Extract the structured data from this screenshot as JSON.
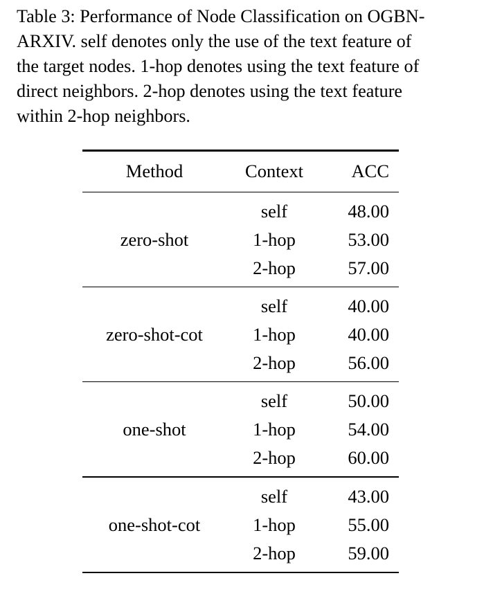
{
  "caption": {
    "lines": [
      "Table 3: Performance of Node Classification on OGBN-",
      "ARXIV. self denotes only the use of the text feature of",
      "the target nodes. 1-hop denotes using the text feature of",
      "direct neighbors. 2-hop denotes using the text feature",
      "within 2-hop neighbors."
    ]
  },
  "table": {
    "headers": {
      "method": "Method",
      "context": "Context",
      "acc": "ACC"
    },
    "groups": [
      {
        "method": "zero-shot",
        "rows": [
          {
            "context": "self",
            "acc": "48.00"
          },
          {
            "context": "1-hop",
            "acc": "53.00"
          },
          {
            "context": "2-hop",
            "acc": "57.00"
          }
        ]
      },
      {
        "method": "zero-shot-cot",
        "rows": [
          {
            "context": "self",
            "acc": "40.00"
          },
          {
            "context": "1-hop",
            "acc": "40.00"
          },
          {
            "context": "2-hop",
            "acc": "56.00"
          }
        ]
      },
      {
        "method": "one-shot",
        "rows": [
          {
            "context": "self",
            "acc": "50.00"
          },
          {
            "context": "1-hop",
            "acc": "54.00"
          },
          {
            "context": "2-hop",
            "acc": "60.00"
          }
        ]
      },
      {
        "method": "one-shot-cot",
        "rows": [
          {
            "context": "self",
            "acc": "43.00"
          },
          {
            "context": "1-hop",
            "acc": "55.00"
          },
          {
            "context": "2-hop",
            "acc": "59.00"
          }
        ]
      }
    ]
  }
}
